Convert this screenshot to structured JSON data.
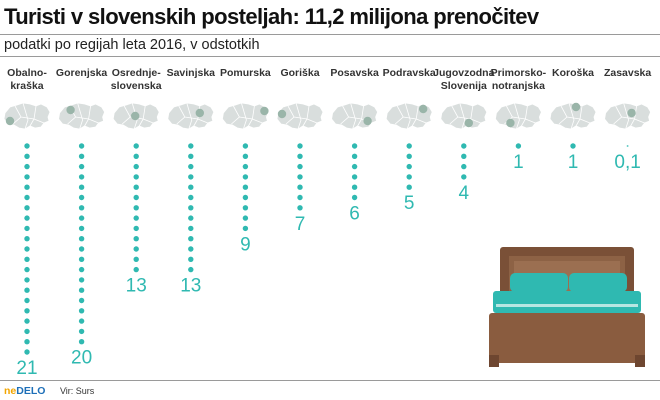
{
  "header": {
    "title": "Turisti v slovenskih posteljah: 11,2 milijona prenočitev",
    "subtitle": "podatki po regijah leta 2016, v odstotkih"
  },
  "footer": {
    "brand_ne": "ne",
    "brand_delo": "DELO",
    "source": "Vir: Surs"
  },
  "colors": {
    "dots": "#2fb9b1",
    "map_base": "#d9dedd",
    "map_highlight": "#9ab5a9"
  },
  "icons": [
    "slovenia-map-icon",
    "bed-icon"
  ],
  "chart_data": {
    "type": "bar",
    "title": "Turisti v slovenskih posteljah: 11,2 milijona prenočitev",
    "subtitle": "podatki po regijah leta 2016, v odstotkih",
    "unit": "%",
    "categories": [
      [
        "Obalno-",
        "kraška"
      ],
      [
        "Gorenjska"
      ],
      [
        "Osrednje-",
        "slovenska"
      ],
      [
        "Savinjska"
      ],
      [
        "Pomurska"
      ],
      [
        "Goriška"
      ],
      [
        "Posavska"
      ],
      [
        "Podravska"
      ],
      [
        "Jugovzodna",
        "Slovenija"
      ],
      [
        "Primorsko-",
        "notranjska"
      ],
      [
        "Koroška"
      ],
      [
        "Zasavska"
      ]
    ],
    "values": [
      21,
      20,
      13,
      13,
      9,
      7,
      6,
      5,
      4,
      1,
      1,
      0.1
    ],
    "value_labels": [
      "21",
      "20",
      "13",
      "13",
      "9",
      "7",
      "6",
      "5",
      "4",
      "1",
      "1",
      "0,1"
    ]
  }
}
